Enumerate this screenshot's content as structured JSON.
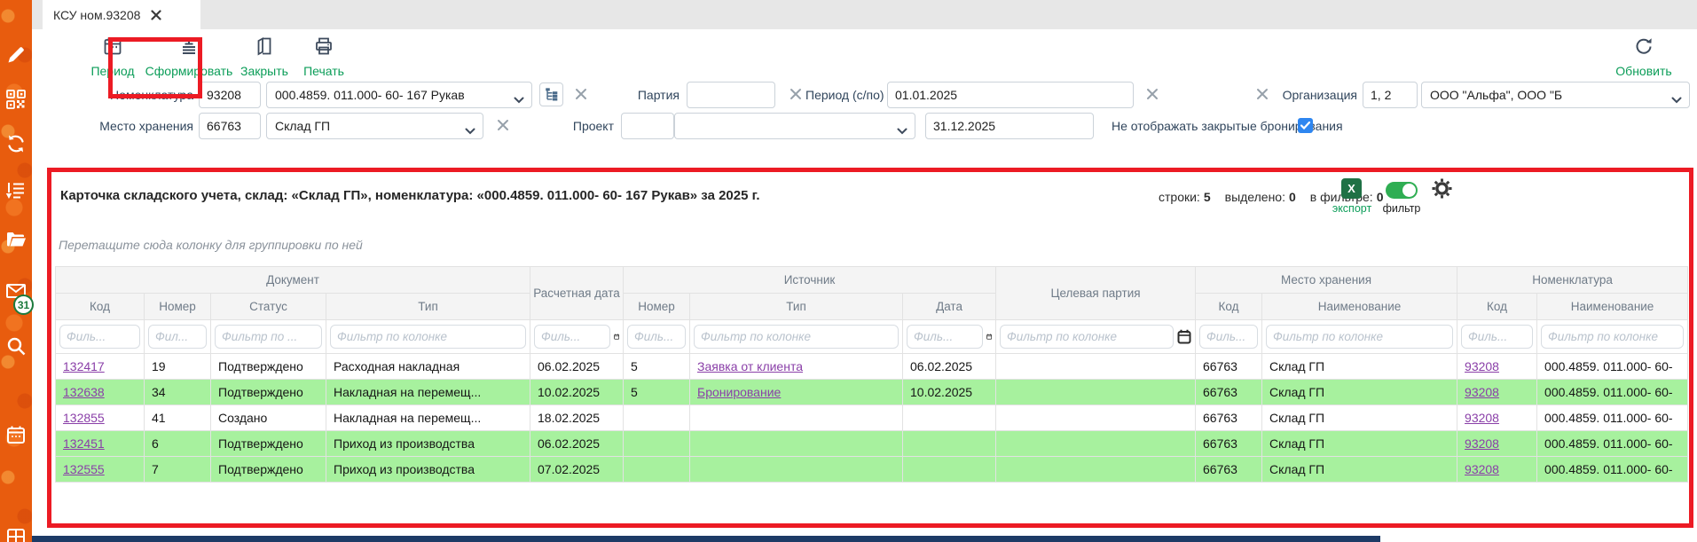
{
  "tab": {
    "title": "КСУ ном.93208"
  },
  "toolbar": {
    "period": "Период",
    "generate": "Сформировать",
    "close": "Закрыть",
    "print": "Печать",
    "refresh": "Обновить"
  },
  "sidebar": {
    "badge": "31"
  },
  "filters": {
    "nomenclature": {
      "label": "Номенклатура",
      "code": "93208",
      "value": "000.4859. 011.000- 60- 167 Рукав"
    },
    "party": {
      "label": "Партия",
      "value": ""
    },
    "period": {
      "label": "Период (с/по)",
      "from": "01.01.2025",
      "to": "31.12.2025"
    },
    "organization": {
      "label": "Организация",
      "code": "1, 2",
      "value": "ООО \"Альфа\", ООО \"Б"
    },
    "storage": {
      "label": "Место хранения",
      "code": "66763",
      "value": "Склад ГП"
    },
    "project": {
      "label": "Проект",
      "code": "",
      "value": ""
    },
    "hide_closed": {
      "label": "Не отображать закрытые бронирования",
      "checked": true
    }
  },
  "grid": {
    "title": "Карточка складского учета, склад: «Склад ГП», номенклатура: «000.4859. 011.000- 60- 167 Рукав» за 2025 г.",
    "stats": {
      "rows_label": "строки:",
      "rows": "5",
      "selected_label": "выделено:",
      "selected": "0",
      "filtered_label": "в фильтре:",
      "filtered": "0"
    },
    "export_icon_text": "X",
    "export_label": "экспорт",
    "filter_label": "фильтр",
    "group_hint": "Перетащите сюда колонку для группировки по ней",
    "groups": {
      "document": "Документ",
      "source": "Источник",
      "storage": "Место хранения",
      "nomenclature": "Номенклатура"
    },
    "columns": {
      "doc_code": "Код",
      "doc_number": "Номер",
      "doc_status": "Статус",
      "doc_type": "Тип",
      "calc_date": "Расчетная дата",
      "src_number": "Номер",
      "src_type": "Тип",
      "src_date": "Дата",
      "target_party": "Целевая партия",
      "st_code": "Код",
      "st_name": "Наименование",
      "nom_code": "Код",
      "nom_name": "Наименование"
    },
    "filter_placeholders": [
      "Филь...",
      "Фил...",
      "Фильтр по ...",
      "Фильтр по колонке",
      "Филь...",
      "Филь...",
      "Фильтр по колонке",
      "Филь...",
      "Фильтр по колонке",
      "Филь...",
      "Фильтр по колонке",
      "Филь...",
      "Фильтр по колонке"
    ],
    "calendar_filter_columns": [
      4,
      7,
      8
    ],
    "link_columns": [
      0,
      6,
      11
    ],
    "rows": [
      {
        "green": false,
        "cells": [
          "132417",
          "19",
          "Подтверждено",
          "Расходная накладная",
          "06.02.2025",
          "5",
          "Заявка от клиента",
          "06.02.2025",
          "",
          "66763",
          "Склад ГП",
          "93208",
          "000.4859. 011.000- 60-"
        ]
      },
      {
        "green": true,
        "cells": [
          "132638",
          "34",
          "Подтверждено",
          "Накладная на перемещ...",
          "10.02.2025",
          "5",
          "Бронирование",
          "10.02.2025",
          "",
          "66763",
          "Склад ГП",
          "93208",
          "000.4859. 011.000- 60-"
        ]
      },
      {
        "green": false,
        "cells": [
          "132855",
          "41",
          "Создано",
          "Накладная на перемещ...",
          "18.02.2025",
          "",
          "",
          "",
          "",
          "66763",
          "Склад ГП",
          "93208",
          "000.4859. 011.000- 60-"
        ]
      },
      {
        "green": true,
        "cells": [
          "132451",
          "6",
          "Подтверждено",
          "Приход из производства",
          "06.02.2025",
          "",
          "",
          "",
          "",
          "66763",
          "Склад ГП",
          "93208",
          "000.4859. 011.000- 60-"
        ]
      },
      {
        "green": true,
        "cells": [
          "132555",
          "7",
          "Подтверждено",
          "Приход из производства",
          "07.02.2025",
          "",
          "",
          "",
          "",
          "66763",
          "Склад ГП",
          "93208",
          "000.4859. 011.000- 60-"
        ]
      }
    ]
  },
  "colors": {
    "accent_green": "#0b9d58",
    "annotation_red": "#ec1b24",
    "row_green": "#a7f19e",
    "link_purple": "#8a3fa8",
    "checkbox_blue": "#2e86f0",
    "sidebar_orange": "#e85c0e",
    "footer_navy": "#1d3b66"
  }
}
